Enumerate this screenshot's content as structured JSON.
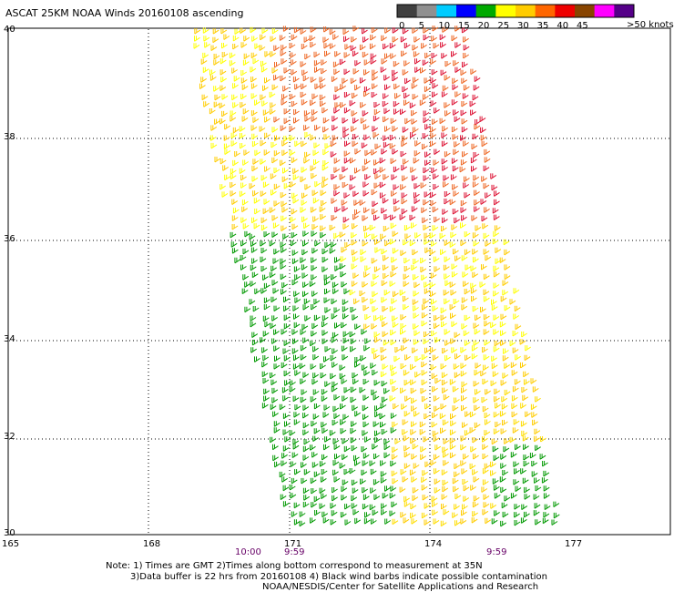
{
  "title": "ASCAT 25KM NOAA Winds 20160108 ascending",
  "legend": {
    "unit_label": ">50 knots",
    "ticks": [
      "0",
      "5",
      "10",
      "15",
      "20",
      "25",
      "30",
      "35",
      "40",
      "45"
    ],
    "colors": [
      "#404040",
      "#909090",
      "#00ccff",
      "#0000ff",
      "#00aa00",
      "#ffff00",
      "#ffcc00",
      "#ff6600",
      "#ee0000",
      "#884400",
      "#ff00ff",
      "#550088"
    ]
  },
  "axes": {
    "lon_labels": [
      "165",
      "168",
      "171",
      "174",
      "177"
    ],
    "lat_labels": [
      "40",
      "38",
      "36",
      "34",
      "32",
      "30"
    ],
    "lon_range": [
      165,
      177
    ],
    "lat_range": [
      30,
      40
    ],
    "grid": "dotted"
  },
  "times": [
    "10:00",
    "9:59",
    "9:59"
  ],
  "notes": [
    "Note: 1) Times are GMT 2)Times along bottom correspond to measurement at 35N",
    "3)Data buffer is 22 hrs from 20160108 4) Black wind barbs indicate possible contamination",
    "NOAA/NESDIS/Center for Satellite Applications and Research"
  ]
}
